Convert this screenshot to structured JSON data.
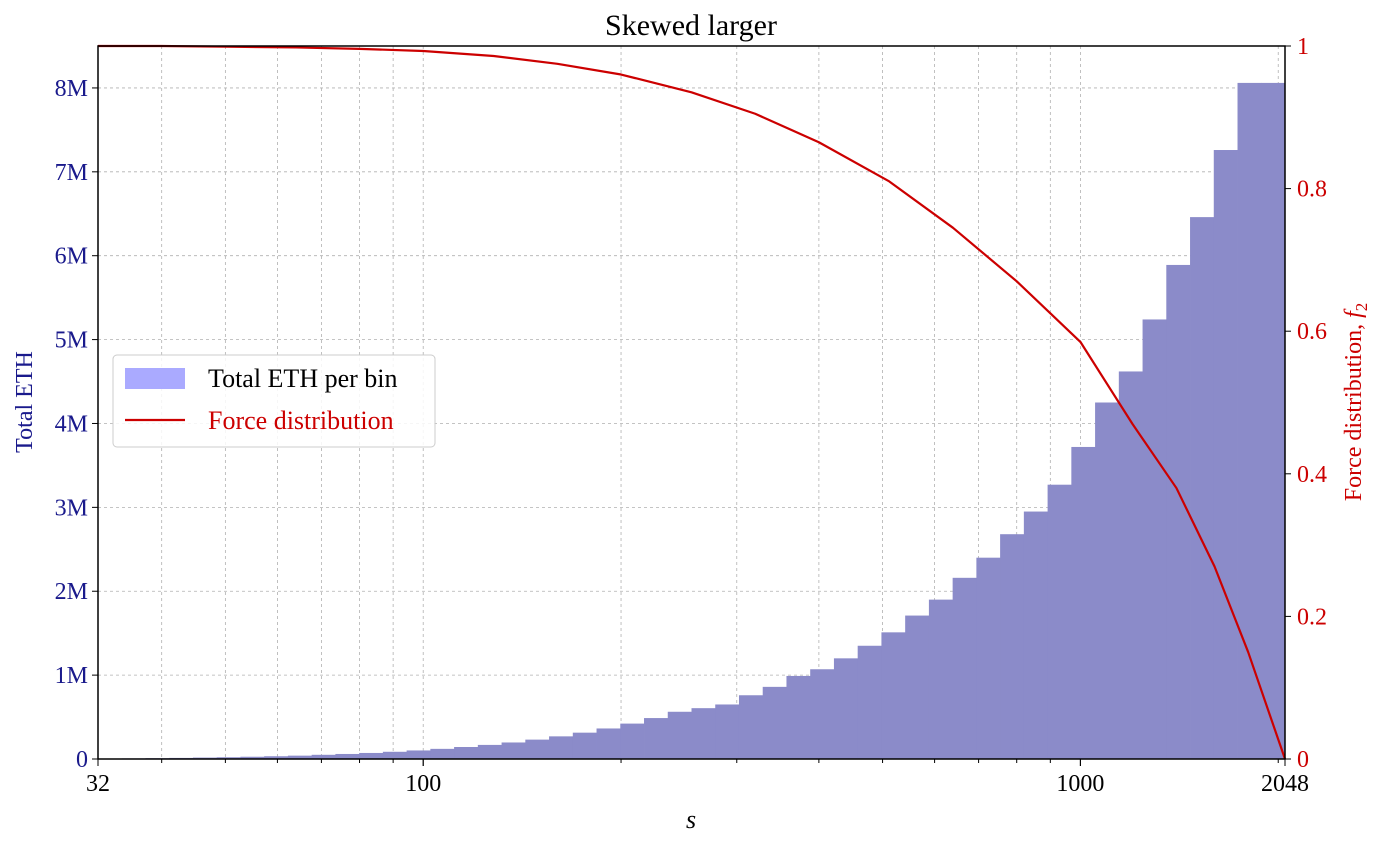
{
  "chart_data": {
    "type": "bar",
    "title": "Skewed larger",
    "xlabel": "s",
    "x_scale": "log",
    "xlim": [
      32,
      2048
    ],
    "x_ticks": [
      32,
      100,
      1000,
      2048
    ],
    "x_tick_labels": [
      "32",
      "100",
      "1000",
      "2048"
    ],
    "ylabel_left": "Total ETH",
    "ylim_left": [
      0,
      8500000
    ],
    "y_ticks_left": [
      0,
      1000000,
      2000000,
      3000000,
      4000000,
      5000000,
      6000000,
      7000000,
      8000000
    ],
    "y_tick_labels_left": [
      "0",
      "1M",
      "2M",
      "3M",
      "4M",
      "5M",
      "6M",
      "7M",
      "8M"
    ],
    "ylabel_right": "Force distribution, ",
    "ylabel_right_symbol": "f",
    "ylabel_right_subscript": "2",
    "ylim_right": [
      0,
      1
    ],
    "y_ticks_right": [
      0,
      0.2,
      0.4,
      0.6,
      0.8,
      1
    ],
    "y_tick_labels_right": [
      "0",
      "0.2",
      "0.4",
      "0.6",
      "0.8",
      "1"
    ],
    "grid": true,
    "legend_position": "center-left",
    "bin_count": 50,
    "series": [
      {
        "name": "Total ETH per bin",
        "axis": "left",
        "kind": "histogram",
        "color": "#8b8bc9",
        "legend_color": "#aaaaff",
        "bin_edges_log_uniform": true,
        "values": [
          5000,
          7000,
          10000,
          13000,
          17000,
          21000,
          27000,
          33000,
          40000,
          50000,
          60000,
          72000,
          86000,
          102000,
          121000,
          143000,
          168000,
          197000,
          231000,
          270000,
          314000,
          364000,
          422000,
          488000,
          563000,
          606000,
          650000,
          760000,
          860000,
          990000,
          1070000,
          1200000,
          1350000,
          1510000,
          1710000,
          1900000,
          2160000,
          2400000,
          2680000,
          2950000,
          3270000,
          3720000,
          4250000,
          4620000,
          5240000,
          5890000,
          6460000,
          7260000,
          8060000,
          8060000
        ]
      },
      {
        "name": "Force distribution",
        "axis": "right",
        "kind": "line",
        "color": "#cc0000",
        "x": [
          32,
          40,
          50,
          64,
          80,
          100,
          128,
          160,
          200,
          256,
          320,
          400,
          512,
          640,
          800,
          1000,
          1200,
          1400,
          1600,
          1800,
          2048
        ],
        "values": [
          1.0,
          1.0,
          0.999,
          0.998,
          0.996,
          0.993,
          0.986,
          0.975,
          0.96,
          0.935,
          0.905,
          0.865,
          0.81,
          0.745,
          0.67,
          0.585,
          0.47,
          0.38,
          0.27,
          0.15,
          0.0
        ]
      }
    ]
  }
}
